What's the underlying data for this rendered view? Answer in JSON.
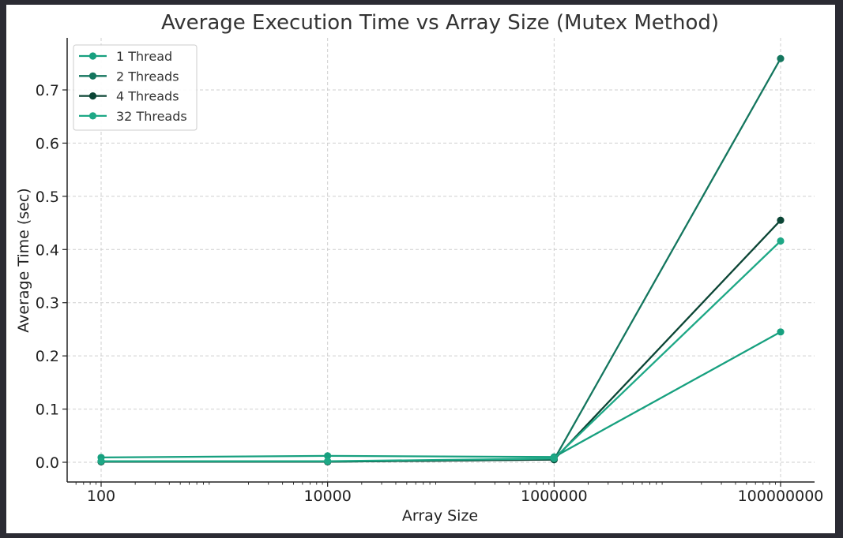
{
  "chart_data": {
    "type": "line",
    "title": "Average Execution Time vs Array Size (Mutex Method)",
    "xlabel": "Array Size",
    "ylabel": "Average Time (sec)",
    "x_scale": "log",
    "x": [
      100,
      10000,
      1000000,
      100000000
    ],
    "x_tick_labels": [
      "100",
      "10000",
      "1000000",
      "100000000"
    ],
    "ylim": [
      -0.03,
      0.79
    ],
    "y_ticks": [
      0.0,
      0.1,
      0.2,
      0.3,
      0.4,
      0.5,
      0.6,
      0.7
    ],
    "y_tick_labels": [
      "0.0",
      "0.1",
      "0.2",
      "0.3",
      "0.4",
      "0.5",
      "0.6",
      "0.7"
    ],
    "grid": true,
    "legend_position": "top-left",
    "series": [
      {
        "name": "1 Thread",
        "color": "#17a07f",
        "values": [
          0.009,
          0.012,
          0.01,
          0.245
        ]
      },
      {
        "name": "2 Threads",
        "color": "#14765e",
        "values": [
          0.001,
          0.001,
          0.005,
          0.759
        ]
      },
      {
        "name": "4 Threads",
        "color": "#0b4535",
        "values": [
          0.001,
          0.001,
          0.005,
          0.455
        ]
      },
      {
        "name": "32 Threads",
        "color": "#1ea886",
        "values": [
          0.002,
          0.002,
          0.007,
          0.416
        ]
      }
    ]
  }
}
